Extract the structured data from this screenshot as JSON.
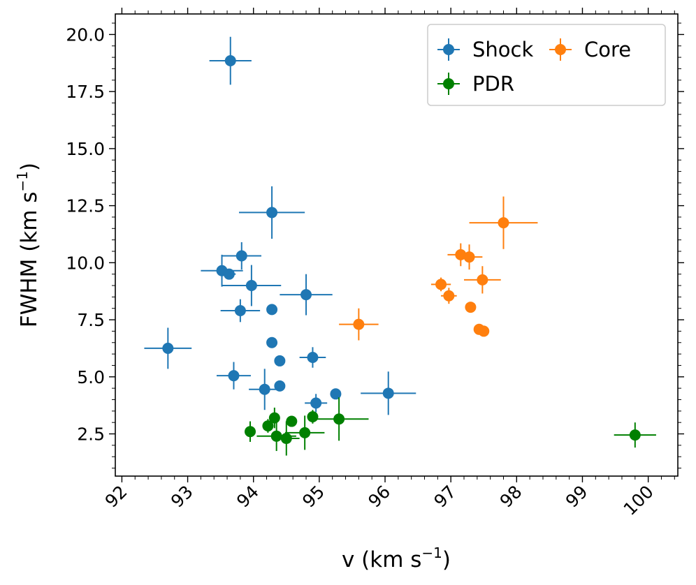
{
  "chart_data": {
    "type": "scatter",
    "title": "",
    "xlabel": "v (km s",
    "xlabel_sup": "−1",
    "xlabel_tail": ")",
    "ylabel": "FWHM (km s",
    "ylabel_sup": "−1",
    "ylabel_tail": ")",
    "xlim": [
      91.9,
      100.45
    ],
    "ylim": [
      0.65,
      20.9
    ],
    "x_ticks": [
      92,
      93,
      94,
      95,
      96,
      97,
      98,
      99,
      100
    ],
    "x_tick_labels": [
      "92",
      "93",
      "94",
      "95",
      "96",
      "97",
      "98",
      "99",
      "100"
    ],
    "y_ticks": [
      2.5,
      5.0,
      7.5,
      10.0,
      12.5,
      15.0,
      17.5,
      20.0
    ],
    "y_tick_labels": [
      "2.5",
      "5.0",
      "7.5",
      "10.0",
      "12.5",
      "15.0",
      "17.5",
      "20.0"
    ],
    "grid": false,
    "legend_position": "top-right",
    "series": [
      {
        "name": "Shock",
        "color": "#1f77b4",
        "points": [
          {
            "x": 93.65,
            "y": 18.85,
            "xerr": 0.32,
            "yerr": 1.05
          },
          {
            "x": 94.28,
            "y": 12.2,
            "xerr": 0.5,
            "yerr": 1.15
          },
          {
            "x": 93.82,
            "y": 10.3,
            "xerr": 0.3,
            "yerr": 0.6
          },
          {
            "x": 93.52,
            "y": 9.65,
            "xerr": 0.32,
            "yerr": 0.7
          },
          {
            "x": 93.63,
            "y": 9.5,
            "xerr": 0.1,
            "yerr": 0.2
          },
          {
            "x": 93.97,
            "y": 9.0,
            "xerr": 0.45,
            "yerr": 0.9
          },
          {
            "x": 94.8,
            "y": 8.6,
            "xerr": 0.4,
            "yerr": 0.9
          },
          {
            "x": 93.8,
            "y": 7.9,
            "xerr": 0.3,
            "yerr": 0.5
          },
          {
            "x": 94.28,
            "y": 7.95,
            "xerr": 0.0,
            "yerr": 0.0
          },
          {
            "x": 92.7,
            "y": 6.25,
            "xerr": 0.36,
            "yerr": 0.9
          },
          {
            "x": 94.28,
            "y": 6.5,
            "xerr": 0.0,
            "yerr": 0.0
          },
          {
            "x": 94.9,
            "y": 5.85,
            "xerr": 0.2,
            "yerr": 0.45
          },
          {
            "x": 94.4,
            "y": 5.7,
            "xerr": 0.0,
            "yerr": 0.0
          },
          {
            "x": 93.7,
            "y": 5.05,
            "xerr": 0.26,
            "yerr": 0.6
          },
          {
            "x": 94.4,
            "y": 4.6,
            "xerr": 0.0,
            "yerr": 0.0
          },
          {
            "x": 94.17,
            "y": 4.45,
            "xerr": 0.24,
            "yerr": 0.9
          },
          {
            "x": 95.25,
            "y": 4.25,
            "xerr": 0.0,
            "yerr": 0.0
          },
          {
            "x": 96.05,
            "y": 4.28,
            "xerr": 0.42,
            "yerr": 0.95
          },
          {
            "x": 94.95,
            "y": 3.85,
            "xerr": 0.17,
            "yerr": 0.4
          }
        ]
      },
      {
        "name": "Core",
        "color": "#ff7f0e",
        "points": [
          {
            "x": 97.8,
            "y": 11.75,
            "xerr": 0.52,
            "yerr": 1.15
          },
          {
            "x": 97.15,
            "y": 10.35,
            "xerr": 0.2,
            "yerr": 0.5
          },
          {
            "x": 97.28,
            "y": 10.25,
            "xerr": 0.2,
            "yerr": 0.55
          },
          {
            "x": 97.48,
            "y": 9.25,
            "xerr": 0.28,
            "yerr": 0.6
          },
          {
            "x": 96.85,
            "y": 9.05,
            "xerr": 0.15,
            "yerr": 0.3
          },
          {
            "x": 96.97,
            "y": 8.55,
            "xerr": 0.12,
            "yerr": 0.35
          },
          {
            "x": 97.3,
            "y": 8.05,
            "xerr": 0.0,
            "yerr": 0.0
          },
          {
            "x": 95.6,
            "y": 7.3,
            "xerr": 0.3,
            "yerr": 0.7
          },
          {
            "x": 97.43,
            "y": 7.08,
            "xerr": 0.0,
            "yerr": 0.0
          },
          {
            "x": 97.5,
            "y": 7.0,
            "xerr": 0.0,
            "yerr": 0.0
          }
        ]
      },
      {
        "name": "PDR",
        "color": "#008000",
        "points": [
          {
            "x": 99.8,
            "y": 2.45,
            "xerr": 0.32,
            "yerr": 0.55
          },
          {
            "x": 93.95,
            "y": 2.6,
            "xerr": 0.0,
            "yerr": 0.45
          },
          {
            "x": 94.22,
            "y": 2.85,
            "xerr": 0.0,
            "yerr": 0.3
          },
          {
            "x": 94.32,
            "y": 3.2,
            "xerr": 0.0,
            "yerr": 0.45
          },
          {
            "x": 94.58,
            "y": 3.05,
            "xerr": 0.0,
            "yerr": 0.0
          },
          {
            "x": 94.9,
            "y": 3.25,
            "xerr": 0.0,
            "yerr": 0.3
          },
          {
            "x": 95.3,
            "y": 3.15,
            "xerr": 0.45,
            "yerr": 0.95
          },
          {
            "x": 94.35,
            "y": 2.4,
            "xerr": 0.3,
            "yerr": 0.65
          },
          {
            "x": 94.5,
            "y": 2.3,
            "xerr": 0.2,
            "yerr": 0.75
          },
          {
            "x": 94.78,
            "y": 2.55,
            "xerr": 0.3,
            "yerr": 0.75
          }
        ]
      }
    ]
  }
}
